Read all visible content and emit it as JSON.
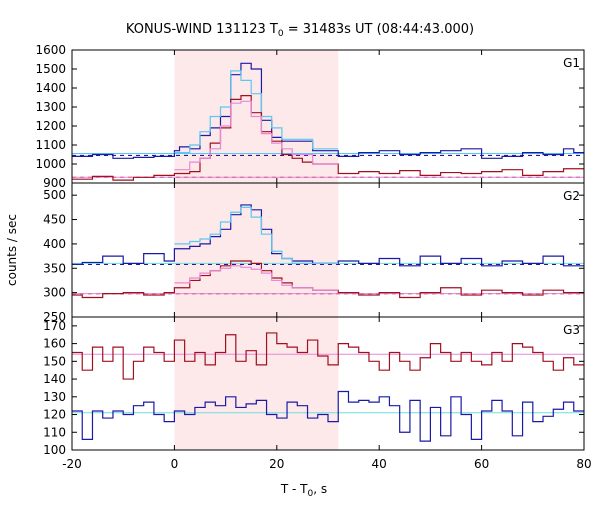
{
  "chart_data": {
    "type": "line",
    "title": "KONUS-WIND 131123 T",
    "title_sub": "0",
    "title_rest": " = 31483s UT (08:44:43.000)",
    "xlabel_main": "T - T",
    "xlabel_sub": "0",
    "xlabel_rest": ", s",
    "ylabel": "counts / sec",
    "xlim": [
      -20,
      80
    ],
    "xticks": [
      -20,
      0,
      20,
      40,
      60,
      80
    ],
    "xtick_labels": [
      "-20",
      "0",
      "20",
      "40",
      "60",
      "80"
    ],
    "highlight_interval": [
      0,
      32
    ],
    "highlight_color": "#fde9ea",
    "colors": {
      "dark_blue": "#1a1aa6",
      "light_blue": "#5cc8f0",
      "dark_red": "#a01020",
      "pink": "#e688d8",
      "cyan": "#6fdede"
    },
    "panels": [
      {
        "name": "G1",
        "ylim": [
          900,
          1600
        ],
        "yticks": [
          900,
          1000,
          1100,
          1200,
          1300,
          1400,
          1500,
          1600
        ],
        "ytick_labels": [
          "900",
          "1000",
          "1100",
          "1200",
          "1300",
          "1400",
          "1500",
          "1600"
        ],
        "reference_lines": [
          {
            "y": 1045,
            "style": "dashed",
            "color": "dark_blue"
          },
          {
            "y": 930,
            "style": "dashed",
            "color": "dark_red"
          },
          {
            "y": 1055,
            "style": "solid",
            "color": "light_blue"
          },
          {
            "y": 930,
            "style": "solid",
            "color": "pink"
          }
        ],
        "series": [
          {
            "color": "dark_blue",
            "edges": [
              -20,
              -16,
              -12,
              -8,
              -4,
              0,
              1,
              3,
              5,
              7,
              9,
              11,
              13,
              15,
              17,
              19,
              21,
              23,
              27,
              32,
              36,
              40,
              44,
              48,
              52,
              56,
              60,
              64,
              68,
              72,
              76,
              78,
              80
            ],
            "values": [
              1040,
              1050,
              1030,
              1035,
              1040,
              1070,
              1090,
              1080,
              1150,
              1190,
              1250,
              1470,
              1530,
              1500,
              1230,
              1140,
              1120,
              1120,
              1070,
              1040,
              1060,
              1070,
              1050,
              1060,
              1070,
              1080,
              1030,
              1040,
              1060,
              1050,
              1080,
              1060
            ]
          },
          {
            "color": "light_blue",
            "edges": [
              0,
              3,
              5,
              7,
              9,
              11,
              13,
              15,
              17,
              19,
              21,
              23,
              27,
              32
            ],
            "values": [
              1060,
              1100,
              1170,
              1250,
              1300,
              1490,
              1440,
              1370,
              1250,
              1190,
              1130,
              1130,
              1080
            ]
          },
          {
            "color": "dark_red",
            "edges": [
              -20,
              -16,
              -12,
              -8,
              -4,
              0,
              3,
              5,
              7,
              9,
              11,
              13,
              15,
              17,
              19,
              21,
              23,
              25,
              27,
              32,
              36,
              40,
              44,
              48,
              52,
              56,
              60,
              64,
              68,
              72,
              76,
              80
            ],
            "values": [
              920,
              935,
              915,
              930,
              940,
              950,
              960,
              1030,
              1110,
              1190,
              1340,
              1360,
              1270,
              1170,
              1120,
              1050,
              1030,
              1010,
              1000,
              950,
              960,
              950,
              965,
              940,
              955,
              950,
              960,
              970,
              940,
              960,
              975
            ]
          },
          {
            "color": "pink",
            "edges": [
              0,
              3,
              5,
              7,
              9,
              11,
              13,
              15,
              17,
              19,
              21,
              23,
              27,
              32
            ],
            "values": [
              970,
              1010,
              1030,
              1080,
              1200,
              1320,
              1330,
              1250,
              1160,
              1110,
              1080,
              1050,
              1000
            ]
          }
        ]
      },
      {
        "name": "G2",
        "ylim": [
          250,
          525
        ],
        "yticks": [
          250,
          300,
          350,
          400,
          450,
          500
        ],
        "ytick_labels": [
          "250",
          "300",
          "350",
          "400",
          "450",
          "500"
        ],
        "reference_lines": [
          {
            "y": 358,
            "style": "dashed",
            "color": "dark_blue"
          },
          {
            "y": 298,
            "style": "dashed",
            "color": "dark_red"
          },
          {
            "y": 360,
            "style": "solid",
            "color": "cyan"
          },
          {
            "y": 298,
            "style": "solid",
            "color": "pink"
          }
        ],
        "series": [
          {
            "color": "dark_blue",
            "edges": [
              -20,
              -18,
              -14,
              -10,
              -6,
              -2,
              0,
              3,
              5,
              7,
              9,
              11,
              13,
              15,
              17,
              19,
              21,
              23,
              27,
              32,
              36,
              40,
              44,
              48,
              52,
              56,
              60,
              64,
              68,
              72,
              76,
              80
            ],
            "values": [
              358,
              362,
              375,
              360,
              380,
              365,
              390,
              395,
              400,
              415,
              430,
              460,
              480,
              470,
              430,
              380,
              370,
              365,
              360,
              365,
              360,
              370,
              355,
              375,
              360,
              370,
              355,
              365,
              360,
              375,
              355
            ]
          },
          {
            "color": "light_blue",
            "edges": [
              0,
              3,
              5,
              7,
              9,
              11,
              13,
              15,
              17,
              19,
              21,
              23,
              27,
              32
            ],
            "values": [
              400,
              405,
              410,
              420,
              445,
              465,
              475,
              455,
              420,
              385,
              370,
              360,
              360
            ]
          },
          {
            "color": "dark_red",
            "edges": [
              -20,
              -18,
              -14,
              -10,
              -6,
              -2,
              0,
              3,
              5,
              7,
              9,
              11,
              13,
              15,
              17,
              19,
              21,
              23,
              27,
              32,
              36,
              40,
              44,
              48,
              52,
              56,
              60,
              64,
              68,
              72,
              76,
              80
            ],
            "values": [
              295,
              290,
              298,
              300,
              295,
              300,
              310,
              325,
              335,
              345,
              355,
              365,
              365,
              360,
              345,
              330,
              320,
              310,
              305,
              300,
              295,
              300,
              290,
              300,
              310,
              295,
              305,
              300,
              295,
              305,
              300
            ]
          },
          {
            "color": "pink",
            "edges": [
              0,
              3,
              5,
              7,
              9,
              11,
              13,
              15,
              17,
              19,
              21,
              23,
              27,
              32
            ],
            "values": [
              320,
              330,
              340,
              345,
              350,
              355,
              352,
              348,
              340,
              325,
              315,
              310,
              305
            ]
          }
        ]
      },
      {
        "name": "G3",
        "ylim": [
          100,
          175
        ],
        "yticks": [
          100,
          110,
          120,
          130,
          140,
          150,
          160,
          170
        ],
        "ytick_labels": [
          "100",
          "110",
          "120",
          "130",
          "140",
          "150",
          "160",
          "170"
        ],
        "reference_lines": [
          {
            "y": 154,
            "style": "solid",
            "color": "pink"
          },
          {
            "y": 121,
            "style": "solid",
            "color": "cyan"
          }
        ],
        "series": [
          {
            "color": "dark_red",
            "edges": [
              -20,
              -18,
              -16,
              -14,
              -12,
              -10,
              -8,
              -6,
              -4,
              -2,
              0,
              2,
              4,
              6,
              8,
              10,
              12,
              14,
              16,
              18,
              20,
              22,
              24,
              26,
              28,
              30,
              32,
              34,
              36,
              38,
              40,
              42,
              44,
              46,
              48,
              50,
              52,
              54,
              56,
              58,
              60,
              62,
              64,
              66,
              68,
              70,
              72,
              74,
              76,
              78,
              80
            ],
            "values": [
              155,
              145,
              158,
              150,
              158,
              140,
              150,
              158,
              155,
              150,
              162,
              150,
              155,
              148,
              155,
              165,
              150,
              156,
              148,
              166,
              160,
              158,
              155,
              162,
              153,
              148,
              160,
              158,
              155,
              150,
              145,
              155,
              150,
              145,
              152,
              160,
              155,
              150,
              155,
              150,
              148,
              155,
              150,
              160,
              158,
              155,
              150,
              145,
              152,
              148
            ]
          },
          {
            "color": "dark_blue",
            "edges": [
              -20,
              -18,
              -16,
              -14,
              -12,
              -10,
              -8,
              -6,
              -4,
              -2,
              0,
              2,
              4,
              6,
              8,
              10,
              12,
              14,
              16,
              18,
              20,
              22,
              24,
              26,
              28,
              30,
              32,
              34,
              36,
              38,
              40,
              42,
              44,
              46,
              48,
              50,
              52,
              54,
              56,
              58,
              60,
              62,
              64,
              66,
              68,
              70,
              72,
              74,
              76,
              78,
              80
            ],
            "values": [
              122,
              106,
              122,
              118,
              122,
              120,
              125,
              127,
              120,
              116,
              122,
              120,
              124,
              127,
              125,
              130,
              124,
              126,
              128,
              120,
              118,
              127,
              125,
              118,
              120,
              116,
              133,
              127,
              128,
              127,
              130,
              125,
              110,
              128,
              105,
              124,
              108,
              130,
              120,
              106,
              122,
              128,
              122,
              108,
              127,
              116,
              119,
              123,
              127,
              122
            ]
          }
        ]
      }
    ]
  }
}
